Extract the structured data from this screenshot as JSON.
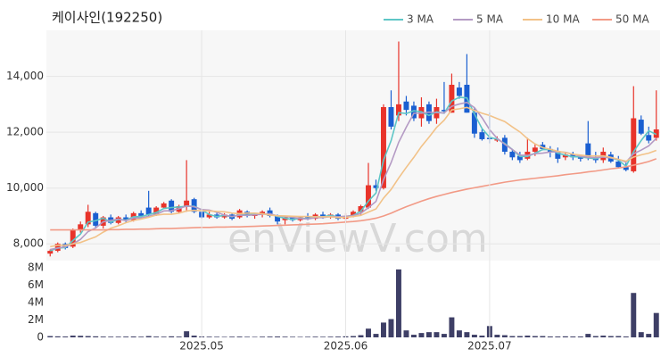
{
  "chart_data": [
    {
      "type": "candlestick",
      "title": "케이사인(192250)",
      "watermark": "enViewV.com",
      "up_color": "#e8332a",
      "down_color": "#1a5fd1",
      "grid": true,
      "legend": "top-right",
      "ylim": [
        7400,
        15650
      ],
      "yticks": [
        {
          "value": 8000,
          "label": "8,000"
        },
        {
          "value": 10000,
          "label": "10,000"
        },
        {
          "value": 12000,
          "label": "12,000"
        },
        {
          "value": 14000,
          "label": "14,000"
        }
      ],
      "open": [
        7650,
        7750,
        8000,
        7900,
        8500,
        8700,
        9100,
        8650,
        8950,
        8750,
        8950,
        8850,
        9100,
        9300,
        9050,
        9300,
        9550,
        9150,
        9350,
        9600,
        9150,
        8950,
        9050,
        8950,
        9050,
        8950,
        9150,
        9000,
        9050,
        9200,
        9000,
        8850,
        8950,
        8850,
        8950,
        8900,
        9050,
        8950,
        9050,
        8900,
        9000,
        9150,
        9300,
        10100,
        10000,
        12900,
        12600,
        13100,
        12950,
        12500,
        13000,
        12500,
        12800,
        12700,
        13600,
        13700,
        12700,
        12000,
        11800,
        11700,
        11800,
        11300,
        11150,
        11050,
        11300,
        11550,
        11400,
        11300,
        11100,
        11200,
        11100,
        11600,
        11100,
        11000,
        11200,
        10950,
        10750,
        10600,
        12450,
        11900,
        11800
      ],
      "high": [
        7800,
        8050,
        8050,
        8550,
        8800,
        9400,
        9150,
        9000,
        9050,
        9000,
        9050,
        9150,
        9200,
        9900,
        9350,
        9500,
        9600,
        9400,
        11000,
        9650,
        9250,
        9150,
        9150,
        9100,
        9100,
        9250,
        9200,
        9100,
        9200,
        9300,
        9050,
        9000,
        9000,
        9000,
        9100,
        9100,
        9150,
        9100,
        9100,
        9100,
        9200,
        9400,
        10900,
        10300,
        13000,
        13500,
        15250,
        13300,
        13100,
        13250,
        13100,
        13200,
        13800,
        14100,
        13800,
        14800,
        12900,
        12100,
        12700,
        11850,
        11900,
        11400,
        11300,
        11800,
        11600,
        11650,
        11500,
        11450,
        11300,
        11300,
        11200,
        12400,
        11300,
        11450,
        11300,
        11150,
        10900,
        13650,
        12600,
        12200,
        13500
      ],
      "low": [
        7550,
        7700,
        7800,
        7850,
        8400,
        8600,
        8550,
        8550,
        8700,
        8700,
        8750,
        8800,
        8950,
        8950,
        9000,
        9250,
        9100,
        9100,
        9150,
        9100,
        8900,
        8900,
        8900,
        8900,
        8850,
        8900,
        8950,
        8900,
        8950,
        8950,
        8700,
        8700,
        8800,
        8800,
        8850,
        8850,
        8900,
        8900,
        8850,
        8750,
        8950,
        9050,
        9250,
        9900,
        9950,
        12100,
        12400,
        12600,
        12400,
        12200,
        12300,
        12300,
        12700,
        12700,
        13200,
        12700,
        11800,
        11700,
        11600,
        11650,
        11200,
        11000,
        10900,
        11000,
        11150,
        11350,
        11100,
        10900,
        11000,
        11000,
        10950,
        11000,
        10900,
        10900,
        10900,
        10700,
        10600,
        10550,
        11900,
        11600,
        11700
      ],
      "close": [
        7750,
        8000,
        7850,
        8500,
        8700,
        9150,
        8650,
        8950,
        8750,
        8950,
        8850,
        9100,
        9000,
        9050,
        9300,
        9450,
        9150,
        9350,
        9550,
        9150,
        8950,
        9050,
        8950,
        9050,
        8900,
        9200,
        9000,
        9050,
        9150,
        9000,
        8800,
        8950,
        8850,
        8950,
        8900,
        9050,
        8950,
        9050,
        8900,
        9000,
        9150,
        9350,
        10100,
        10000,
        12900,
        12200,
        13000,
        12800,
        12500,
        12900,
        12400,
        12900,
        12750,
        13700,
        13300,
        12700,
        11950,
        11750,
        11750,
        11750,
        11300,
        11100,
        11000,
        11300,
        11450,
        11400,
        11300,
        11050,
        11200,
        11100,
        11050,
        11100,
        11000,
        11300,
        10950,
        10750,
        10650,
        12500,
        11950,
        11700,
        12100
      ],
      "series": [
        {
          "name": "3 MA",
          "color": "#5ec6c6",
          "values": [
            7750,
            7850,
            7870,
            8120,
            8350,
            8780,
            8830,
            8920,
            8780,
            8880,
            8850,
            8970,
            8980,
            9050,
            9120,
            9270,
            9300,
            9320,
            9350,
            9350,
            9220,
            9050,
            8980,
            9020,
            8970,
            9050,
            9030,
            9080,
            9070,
            9070,
            8980,
            8920,
            8870,
            8920,
            8900,
            8970,
            8970,
            9020,
            8970,
            8980,
            9020,
            9170,
            9530,
            9820,
            11000,
            11700,
            12700,
            12670,
            12770,
            12730,
            12600,
            12730,
            12680,
            13120,
            13250,
            13230,
            12650,
            12130,
            11820,
            11750,
            11600,
            11380,
            11130,
            11130,
            11250,
            11380,
            11380,
            11250,
            11180,
            11120,
            11120,
            11080,
            11050,
            11130,
            11080,
            11000,
            10780,
            11300,
            11700,
            12050,
            11920
          ]
        },
        {
          "name": "5 MA",
          "color": "#b49ac4",
          "values": [
            7800,
            7850,
            7900,
            8000,
            8160,
            8440,
            8570,
            8790,
            8840,
            8890,
            8830,
            8920,
            8930,
            8990,
            9060,
            9180,
            9190,
            9260,
            9360,
            9330,
            9230,
            9210,
            9130,
            9030,
            8980,
            9030,
            9020,
            9040,
            9060,
            9080,
            9000,
            8990,
            8950,
            8910,
            8890,
            8940,
            8940,
            8980,
            8970,
            8990,
            9010,
            9090,
            9300,
            9520,
            10300,
            10910,
            11640,
            12180,
            12680,
            12680,
            12720,
            12700,
            12690,
            12930,
            13010,
            13070,
            12880,
            12520,
            12090,
            11780,
            11570,
            11380,
            11180,
            11170,
            11230,
            11250,
            11290,
            11300,
            11280,
            11210,
            11140,
            11100,
            11090,
            11110,
            11080,
            11030,
            10930,
            11230,
            11360,
            11510,
            11780
          ]
        },
        {
          "name": "10 MA",
          "color": "#f2c288",
          "values": [
            7900,
            7950,
            7950,
            8000,
            8050,
            8150,
            8250,
            8420,
            8560,
            8650,
            8760,
            8840,
            8890,
            8950,
            9030,
            9060,
            9060,
            9100,
            9180,
            9200,
            9190,
            9180,
            9160,
            9150,
            9100,
            9080,
            9100,
            9100,
            9080,
            9030,
            9010,
            9000,
            8990,
            8980,
            8980,
            8970,
            8970,
            8970,
            8940,
            8950,
            8980,
            9020,
            9140,
            9250,
            9640,
            9950,
            10360,
            10740,
            11100,
            11490,
            11820,
            12170,
            12430,
            12800,
            12840,
            12890,
            12780,
            12680,
            12600,
            12490,
            12380,
            12190,
            12010,
            11770,
            11580,
            11450,
            11390,
            11320,
            11270,
            11210,
            11180,
            11150,
            11150,
            11150,
            11100,
            11030,
            10960,
            11110,
            11190,
            11250,
            11350
          ]
        },
        {
          "name": "50 MA",
          "color": "#f29a86",
          "values": [
            8500,
            8500,
            8500,
            8500,
            8500,
            8500,
            8500,
            8500,
            8510,
            8510,
            8520,
            8520,
            8530,
            8530,
            8540,
            8550,
            8550,
            8560,
            8570,
            8580,
            8590,
            8590,
            8600,
            8600,
            8610,
            8610,
            8620,
            8630,
            8640,
            8650,
            8660,
            8670,
            8680,
            8690,
            8700,
            8710,
            8720,
            8740,
            8760,
            8780,
            8800,
            8830,
            8870,
            8920,
            9000,
            9100,
            9220,
            9330,
            9430,
            9530,
            9620,
            9700,
            9770,
            9840,
            9900,
            9960,
            10010,
            10060,
            10110,
            10160,
            10210,
            10250,
            10290,
            10320,
            10350,
            10380,
            10410,
            10440,
            10480,
            10510,
            10540,
            10580,
            10610,
            10650,
            10690,
            10720,
            10760,
            10820,
            10880,
            10950,
            11050
          ]
        }
      ]
    },
    {
      "type": "bar",
      "color": "#3e3f66",
      "ylim": [
        0,
        8300000
      ],
      "yticks": [
        0,
        {
          "value": 2000000,
          "label": "2M"
        },
        {
          "value": 4000000,
          "label": "4M"
        },
        {
          "value": 6000000,
          "label": "6M"
        },
        {
          "value": 8000000,
          "label": "8M"
        }
      ],
      "categories": [
        null,
        null,
        null,
        null,
        null,
        null,
        null,
        null,
        null,
        null,
        null,
        null,
        null,
        null,
        null,
        null,
        null,
        null,
        null,
        null,
        "2025.05",
        null,
        null,
        null,
        null,
        null,
        null,
        null,
        null,
        null,
        null,
        null,
        null,
        null,
        null,
        null,
        null,
        null,
        null,
        "2025.06",
        null,
        null,
        null,
        null,
        null,
        null,
        null,
        null,
        null,
        null,
        null,
        null,
        null,
        null,
        null,
        null,
        null,
        null,
        "2025.07",
        null,
        null,
        null,
        null,
        null,
        null,
        null,
        null,
        null,
        null,
        null,
        null,
        null,
        null,
        null,
        null,
        null,
        null,
        null,
        null,
        null,
        null
      ],
      "values": [
        150000,
        120000,
        100000,
        200000,
        180000,
        150000,
        120000,
        90000,
        80000,
        80000,
        90000,
        100000,
        80000,
        150000,
        90000,
        80000,
        120000,
        90000,
        700000,
        200000,
        100000,
        80000,
        70000,
        60000,
        80000,
        90000,
        70000,
        60000,
        80000,
        90000,
        100000,
        80000,
        70000,
        60000,
        70000,
        80000,
        70000,
        80000,
        90000,
        120000,
        150000,
        250000,
        1000000,
        400000,
        1700000,
        2100000,
        7800000,
        800000,
        300000,
        500000,
        600000,
        600000,
        400000,
        2300000,
        800000,
        600000,
        300000,
        200000,
        1300000,
        300000,
        250000,
        150000,
        150000,
        200000,
        150000,
        150000,
        100000,
        100000,
        120000,
        100000,
        100000,
        400000,
        150000,
        200000,
        150000,
        150000,
        100000,
        5100000,
        600000,
        400000,
        2800000
      ]
    }
  ]
}
